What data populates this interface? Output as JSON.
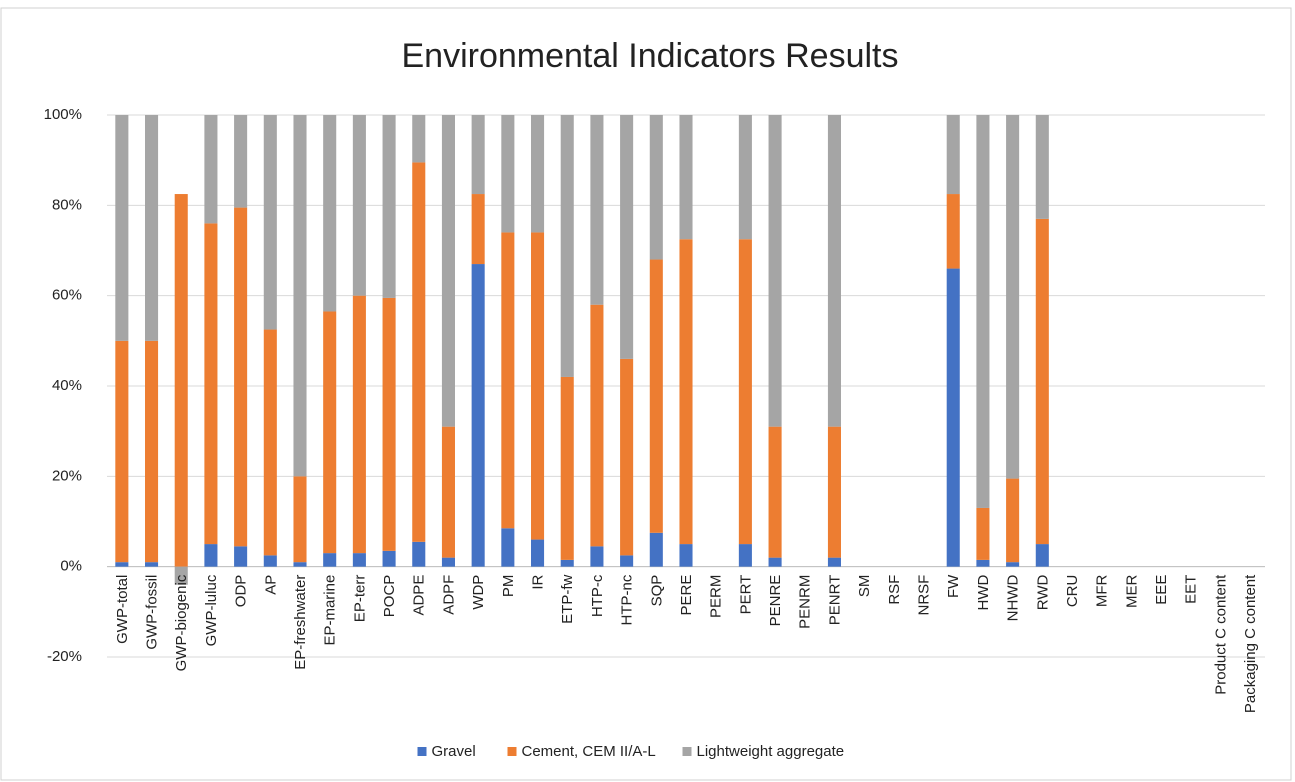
{
  "chart_data": {
    "type": "stacked_bar",
    "title": "Environmental Indicators Results",
    "categories": [
      "GWP-total",
      "GWP-fossil",
      "GWP-biogenic",
      "GWP-luluc",
      "ODP",
      "AP",
      "EP-freshwater",
      "EP-marine",
      "EP-terr",
      "POCP",
      "ADPE",
      "ADPF",
      "WDP",
      "PM",
      "IR",
      "ETP-fw",
      "HTP-c",
      "HTP-nc",
      "SQP",
      "PERE",
      "PERM",
      "PERT",
      "PENRE",
      "PENRM",
      "PENRT",
      "SM",
      "RSF",
      "NRSF",
      "FW",
      "HWD",
      "NHWD",
      "RWD",
      "CRU",
      "MFR",
      "MER",
      "EEE",
      "EET",
      "Product C content",
      "Packaging C content"
    ],
    "series": [
      {
        "name": "Gravel",
        "color": "#4472c4",
        "values": [
          1,
          1,
          0,
          5,
          4.5,
          2.5,
          1,
          3,
          3,
          3.5,
          5.5,
          2,
          67,
          8.5,
          6,
          1.5,
          4.5,
          2.5,
          7.5,
          5,
          null,
          5,
          2,
          null,
          2,
          null,
          null,
          null,
          66,
          1.5,
          1,
          5,
          null,
          null,
          null,
          null,
          null,
          null,
          null
        ]
      },
      {
        "name": "Cement, CEM II/A-L",
        "color": "#ed7d31",
        "values": [
          49,
          49,
          82.5,
          71,
          75,
          50,
          19,
          53.5,
          57,
          56,
          84,
          29,
          15.5,
          65.5,
          68,
          40.5,
          53.5,
          43.5,
          60.5,
          67.5,
          null,
          67.5,
          29,
          null,
          29,
          null,
          null,
          null,
          16.5,
          11.5,
          18.5,
          72,
          null,
          null,
          null,
          null,
          null,
          null,
          null
        ]
      },
      {
        "name": "Lightweight aggregate",
        "color": "#a5a5a5",
        "values": [
          50,
          50,
          -4,
          24,
          20.5,
          47.5,
          80,
          43.5,
          40,
          40.5,
          10.5,
          69,
          17.5,
          26,
          26,
          58,
          42,
          54,
          32,
          27.5,
          null,
          27.5,
          69,
          null,
          69,
          null,
          null,
          null,
          17.5,
          87,
          80.5,
          23,
          null,
          null,
          null,
          null,
          null,
          null,
          null
        ]
      }
    ],
    "ylim": [
      -20,
      100
    ],
    "yticks": [
      {
        "value": -20,
        "label": "-20%"
      },
      {
        "value": 0,
        "label": "0%"
      },
      {
        "value": 20,
        "label": "20%"
      },
      {
        "value": 40,
        "label": "40%"
      },
      {
        "value": 60,
        "label": "60%"
      },
      {
        "value": 80,
        "label": "80%"
      },
      {
        "value": 100,
        "label": "100%"
      }
    ],
    "grid": true
  }
}
